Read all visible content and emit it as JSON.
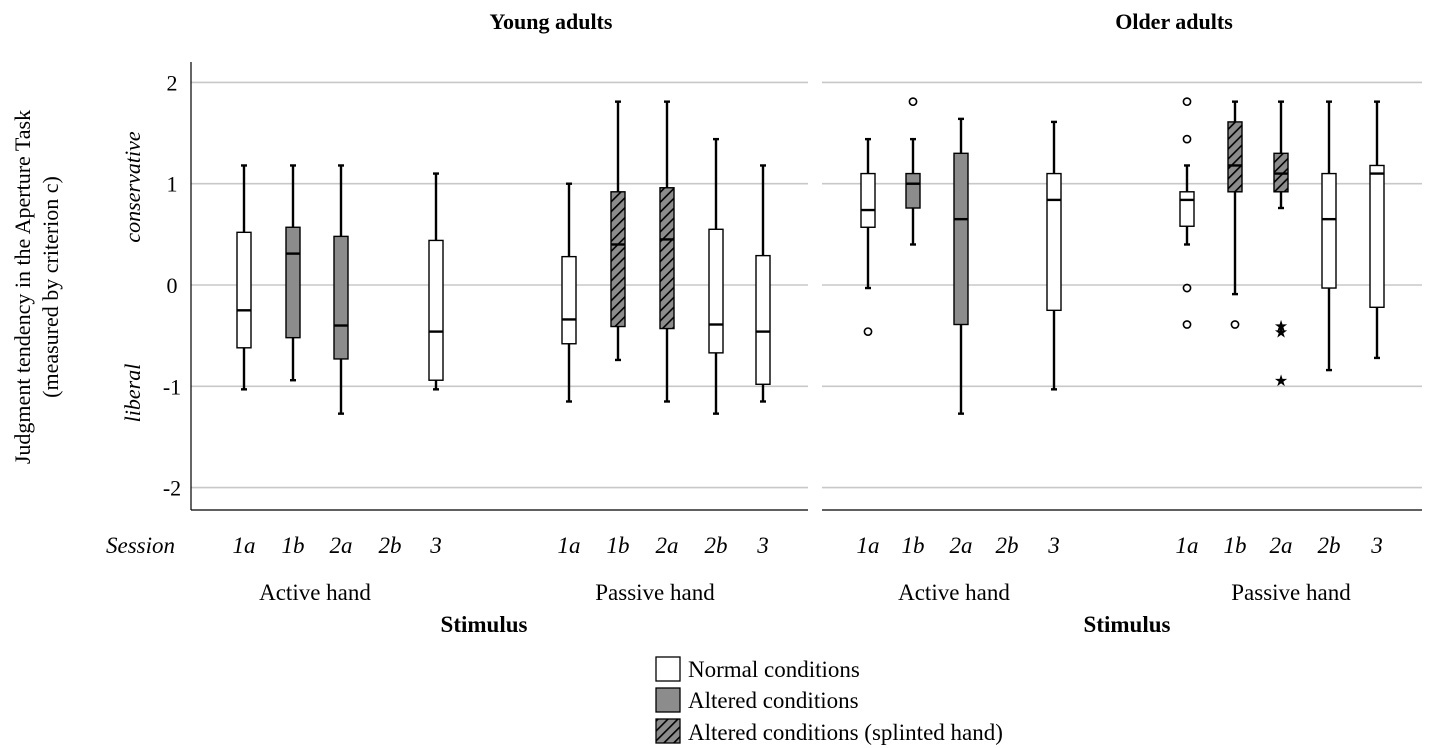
{
  "chart_data": {
    "type": "box",
    "ylabel_line1": "Judgment tendency in the Aperture Task",
    "ylabel_line2": "(measured by criterion c)",
    "y_annotation_top": "conservative",
    "y_annotation_bottom": "liberal",
    "ylim": [
      -2.2,
      2.2
    ],
    "yticks": [
      2,
      1,
      0,
      -1,
      -2
    ],
    "grid": true,
    "session_label": "Session",
    "sessions": [
      "1a",
      "1b",
      "2a",
      "2b",
      "3"
    ],
    "groups": [
      "Active hand",
      "Passive hand"
    ],
    "xlabel": "Stimulus",
    "legend": [
      {
        "label": "Normal conditions",
        "style": "normal"
      },
      {
        "label": "Altered conditions",
        "style": "altered"
      },
      {
        "label": "Altered conditions (splinted hand)",
        "style": "splinted"
      }
    ],
    "colors": {
      "normal": "#ffffff",
      "altered": "#8c8c8c",
      "splinted": "#8c8c8c",
      "grid": "#c8c8c8"
    },
    "panels": [
      {
        "title": "Young adults",
        "groups": [
          {
            "name": "Active hand",
            "boxes": [
              {
                "session": "1a",
                "style": "normal",
                "min": -1.03,
                "q1": -0.62,
                "median": -0.25,
                "q3": 0.52,
                "max": 1.18,
                "outliers": [],
                "extremes": []
              },
              {
                "session": "1b",
                "style": "altered",
                "min": -0.94,
                "q1": -0.52,
                "median": 0.31,
                "q3": 0.57,
                "max": 1.18,
                "outliers": [],
                "extremes": []
              },
              {
                "session": "2a",
                "style": "altered",
                "min": -1.27,
                "q1": -0.73,
                "median": -0.4,
                "q3": 0.48,
                "max": 1.18,
                "outliers": [],
                "extremes": []
              },
              {
                "session": "3",
                "style": "normal",
                "min": -1.03,
                "q1": -0.94,
                "median": -0.46,
                "q3": 0.44,
                "max": 1.1,
                "outliers": [],
                "extremes": []
              }
            ]
          },
          {
            "name": "Passive hand",
            "boxes": [
              {
                "session": "1a",
                "style": "normal",
                "min": -1.15,
                "q1": -0.58,
                "median": -0.34,
                "q3": 0.28,
                "max": 1.0,
                "outliers": [],
                "extremes": []
              },
              {
                "session": "1b",
                "style": "splinted",
                "min": -0.74,
                "q1": -0.41,
                "median": 0.4,
                "q3": 0.92,
                "max": 1.81,
                "outliers": [],
                "extremes": []
              },
              {
                "session": "2a",
                "style": "splinted",
                "min": -1.15,
                "q1": -0.43,
                "median": 0.45,
                "q3": 0.96,
                "max": 1.81,
                "outliers": [],
                "extremes": []
              },
              {
                "session": "2b",
                "style": "normal",
                "min": -1.27,
                "q1": -0.67,
                "median": -0.39,
                "q3": 0.55,
                "max": 1.44,
                "outliers": [],
                "extremes": []
              },
              {
                "session": "3",
                "style": "normal",
                "min": -1.15,
                "q1": -0.98,
                "median": -0.46,
                "q3": 0.29,
                "max": 1.18,
                "outliers": [],
                "extremes": []
              }
            ]
          }
        ]
      },
      {
        "title": "Older adults",
        "groups": [
          {
            "name": "Active hand",
            "boxes": [
              {
                "session": "1a",
                "style": "normal",
                "min": -0.03,
                "q1": 0.57,
                "median": 0.74,
                "q3": 1.1,
                "max": 1.44,
                "outliers": [
                  -0.46
                ],
                "extremes": []
              },
              {
                "session": "1b",
                "style": "altered",
                "min": 0.4,
                "q1": 0.76,
                "median": 1.0,
                "q3": 1.1,
                "max": 1.44,
                "outliers": [
                  1.81
                ],
                "extremes": []
              },
              {
                "session": "2a",
                "style": "altered",
                "min": -1.27,
                "q1": -0.39,
                "median": 0.65,
                "q3": 1.3,
                "max": 1.64,
                "outliers": [],
                "extremes": []
              },
              {
                "session": "3",
                "style": "normal",
                "min": -1.03,
                "q1": -0.25,
                "median": 0.84,
                "q3": 1.1,
                "max": 1.61,
                "outliers": [],
                "extremes": []
              }
            ]
          },
          {
            "name": "Passive hand",
            "boxes": [
              {
                "session": "1a",
                "style": "normal",
                "min": 0.4,
                "q1": 0.58,
                "median": 0.84,
                "q3": 0.92,
                "max": 1.18,
                "outliers": [
                  1.81,
                  1.44,
                  -0.03,
                  -0.39
                ],
                "extremes": []
              },
              {
                "session": "1b",
                "style": "splinted",
                "min": -0.09,
                "q1": 0.92,
                "median": 1.18,
                "q3": 1.61,
                "max": 1.81,
                "outliers": [
                  -0.39
                ],
                "extremes": []
              },
              {
                "session": "2a",
                "style": "splinted",
                "min": 0.76,
                "q1": 0.92,
                "median": 1.1,
                "q3": 1.3,
                "max": 1.81,
                "outliers": [],
                "extremes": [
                  -0.39,
                  -0.45,
                  -0.93
                ]
              },
              {
                "session": "2b",
                "style": "normal",
                "min": -0.84,
                "q1": -0.03,
                "median": 0.65,
                "q3": 1.1,
                "max": 1.81,
                "outliers": [],
                "extremes": []
              },
              {
                "session": "3",
                "style": "normal",
                "min": -0.72,
                "q1": -0.22,
                "median": 1.1,
                "q3": 1.18,
                "max": 1.81,
                "outliers": [],
                "extremes": []
              }
            ]
          }
        ]
      }
    ]
  }
}
